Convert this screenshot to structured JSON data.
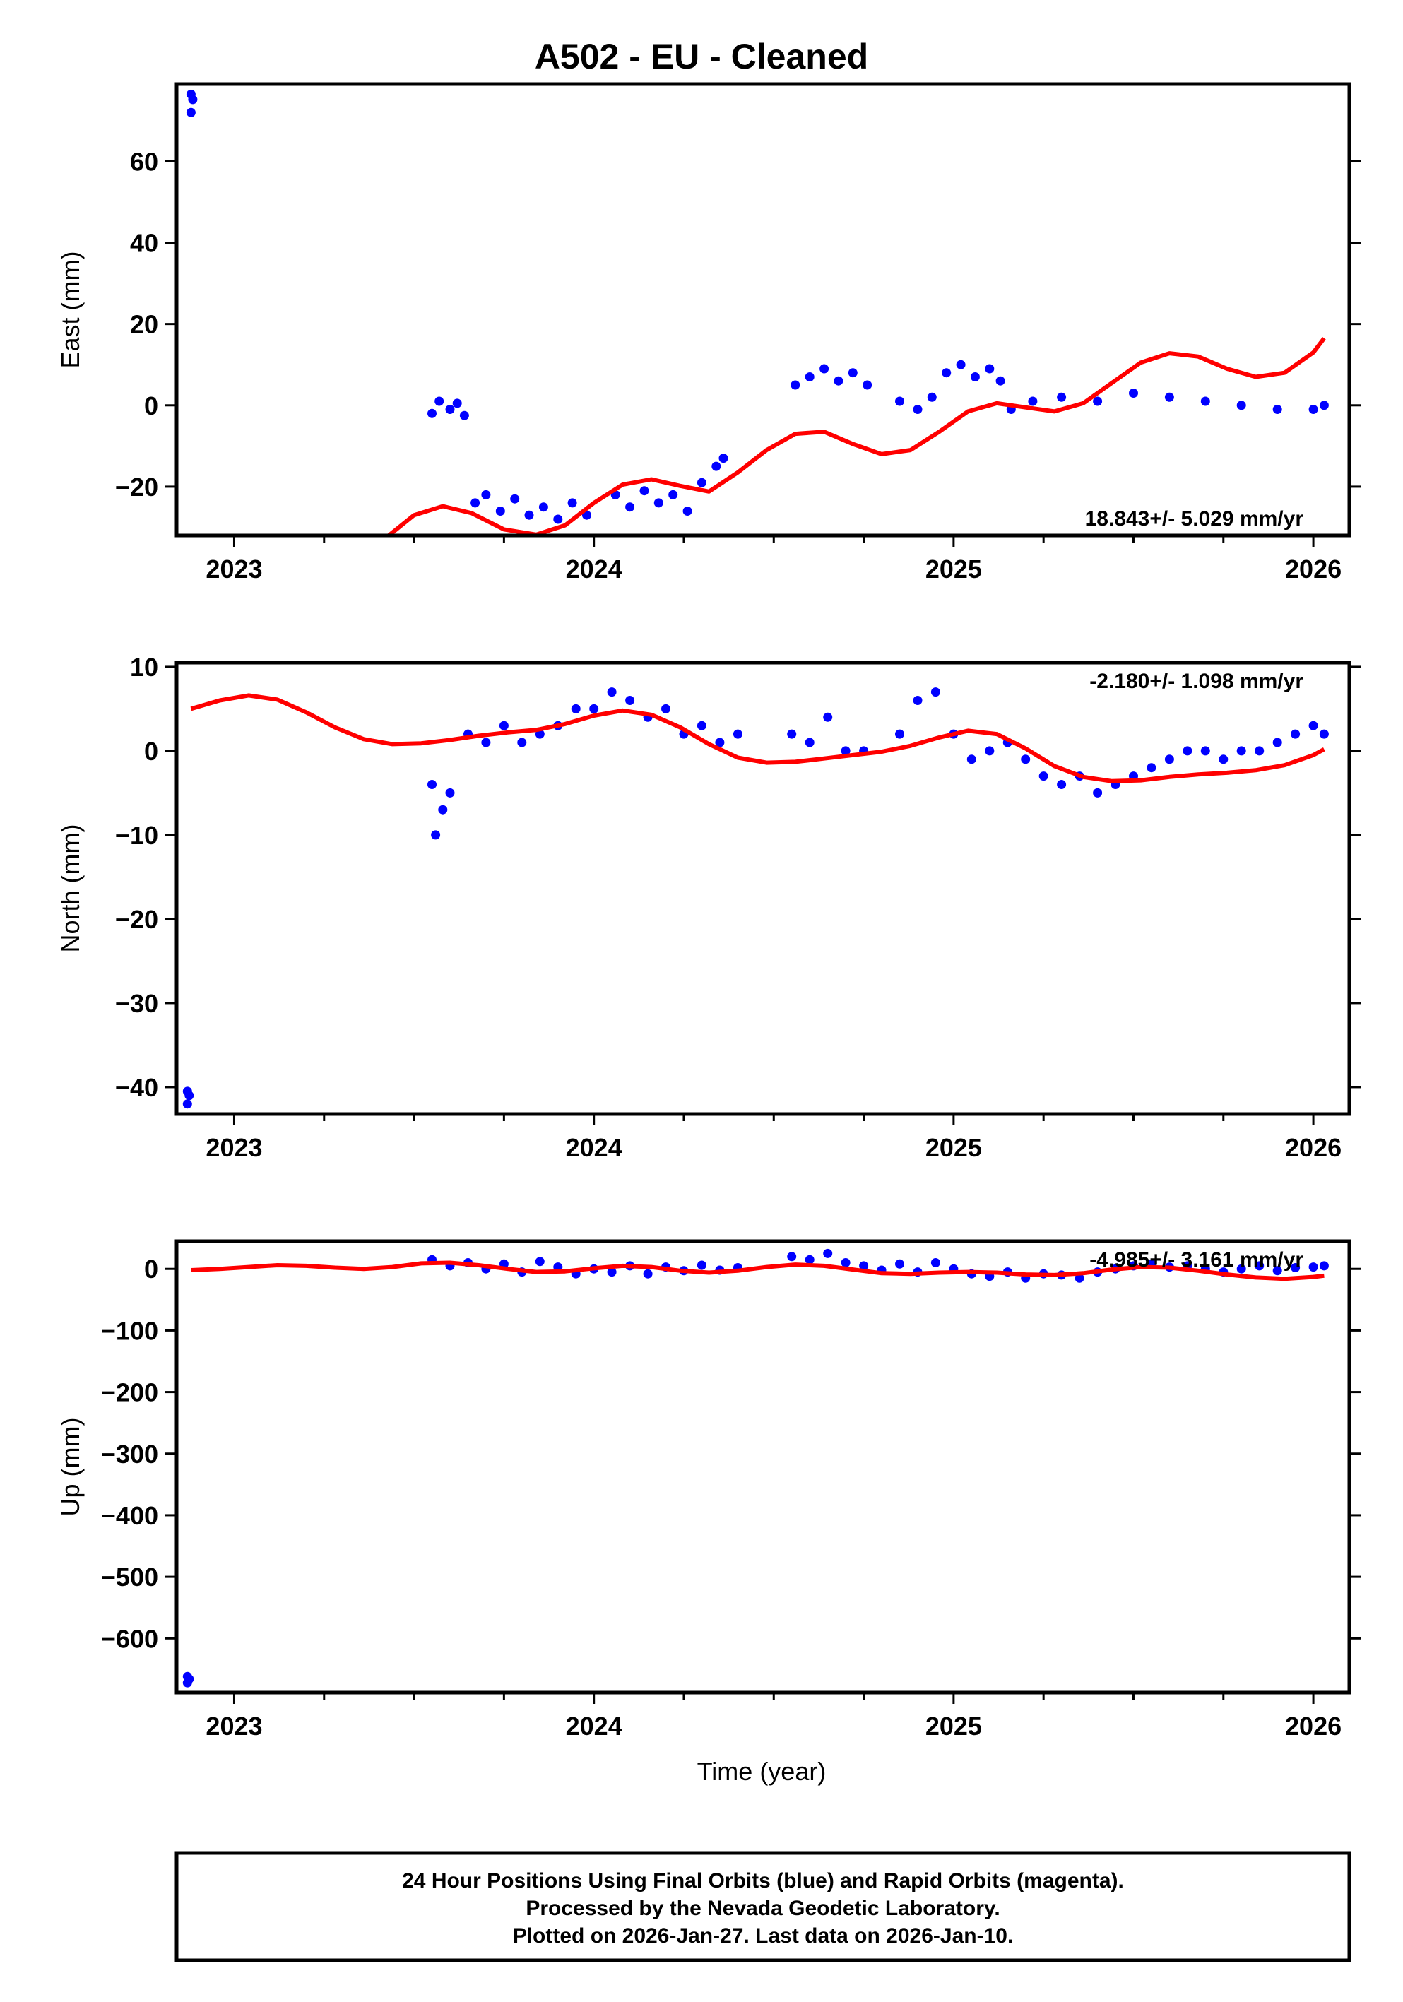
{
  "title": "A502  - EU - Cleaned",
  "colors": {
    "final_orbits": "#0000ff",
    "model": "#ff0000",
    "frame": "#000000"
  },
  "chart_data": [
    {
      "type": "scatter",
      "component": "East",
      "ylabel": "East (mm)",
      "xlabel": "",
      "xlim": [
        2022.84,
        2026.1
      ],
      "ylim": [
        -32,
        79
      ],
      "xticks": [
        2023,
        2024,
        2025,
        2026
      ],
      "xtick_labels": [
        "2023",
        "2024",
        "2025",
        "2026"
      ],
      "yticks": [
        -20,
        0,
        20,
        40,
        60
      ],
      "ytick_labels": [
        "−20",
        "0",
        "20",
        "40",
        "60"
      ],
      "rate_label": "18.843+/- 5.029 mm/yr",
      "points": [
        [
          2022.88,
          76.5
        ],
        [
          2022.885,
          75.2
        ],
        [
          2022.88,
          72.0
        ],
        [
          2023.55,
          -2
        ],
        [
          2023.57,
          1
        ],
        [
          2023.6,
          -1
        ],
        [
          2023.62,
          0.5
        ],
        [
          2023.64,
          -2.5
        ],
        [
          2023.67,
          -24
        ],
        [
          2023.7,
          -22
        ],
        [
          2023.74,
          -26
        ],
        [
          2023.78,
          -23
        ],
        [
          2023.82,
          -27
        ],
        [
          2023.86,
          -25
        ],
        [
          2023.9,
          -28
        ],
        [
          2023.94,
          -24
        ],
        [
          2023.98,
          -27
        ],
        [
          2024.06,
          -22
        ],
        [
          2024.1,
          -25
        ],
        [
          2024.14,
          -21
        ],
        [
          2024.18,
          -24
        ],
        [
          2024.22,
          -22
        ],
        [
          2024.26,
          -26
        ],
        [
          2024.3,
          -19
        ],
        [
          2024.34,
          -15
        ],
        [
          2024.36,
          -13
        ],
        [
          2024.56,
          5
        ],
        [
          2024.6,
          7
        ],
        [
          2024.64,
          9
        ],
        [
          2024.68,
          6
        ],
        [
          2024.72,
          8
        ],
        [
          2024.76,
          5
        ],
        [
          2024.85,
          1
        ],
        [
          2024.9,
          -1
        ],
        [
          2024.94,
          2
        ],
        [
          2024.98,
          8
        ],
        [
          2025.02,
          10
        ],
        [
          2025.06,
          7
        ],
        [
          2025.1,
          9
        ],
        [
          2025.13,
          6
        ],
        [
          2025.16,
          -1
        ],
        [
          2025.22,
          1
        ],
        [
          2025.3,
          2
        ],
        [
          2025.4,
          1
        ],
        [
          2025.5,
          3
        ],
        [
          2025.6,
          2
        ],
        [
          2025.7,
          1
        ],
        [
          2025.8,
          0
        ],
        [
          2025.9,
          -1
        ],
        [
          2026.0,
          -1
        ],
        [
          2026.03,
          0
        ]
      ],
      "model_curve": [
        [
          2023.43,
          -32
        ],
        [
          2023.5,
          -27
        ],
        [
          2023.58,
          -24.8
        ],
        [
          2023.66,
          -26.5
        ],
        [
          2023.75,
          -30.5
        ],
        [
          2023.84,
          -31.8
        ],
        [
          2023.92,
          -29.5
        ],
        [
          2024.0,
          -24
        ],
        [
          2024.08,
          -19.5
        ],
        [
          2024.16,
          -18.2
        ],
        [
          2024.24,
          -19.8
        ],
        [
          2024.32,
          -21.2
        ],
        [
          2024.4,
          -16.5
        ],
        [
          2024.48,
          -11
        ],
        [
          2024.56,
          -7
        ],
        [
          2024.64,
          -6.5
        ],
        [
          2024.72,
          -9.5
        ],
        [
          2024.8,
          -12
        ],
        [
          2024.88,
          -11
        ],
        [
          2024.96,
          -6.5
        ],
        [
          2025.04,
          -1.5
        ],
        [
          2025.12,
          0.5
        ],
        [
          2025.2,
          -0.5
        ],
        [
          2025.28,
          -1.5
        ],
        [
          2025.36,
          0.5
        ],
        [
          2025.44,
          5.5
        ],
        [
          2025.52,
          10.5
        ],
        [
          2025.6,
          12.8
        ],
        [
          2025.68,
          12
        ],
        [
          2025.76,
          9
        ],
        [
          2025.84,
          7
        ],
        [
          2025.92,
          8
        ],
        [
          2026.0,
          13
        ],
        [
          2026.03,
          16.5
        ]
      ]
    },
    {
      "type": "scatter",
      "component": "North",
      "ylabel": "North (mm)",
      "xlabel": "",
      "xlim": [
        2022.84,
        2026.1
      ],
      "ylim": [
        -43.2,
        10.5
      ],
      "xticks": [
        2023,
        2024,
        2025,
        2026
      ],
      "xtick_labels": [
        "2023",
        "2024",
        "2025",
        "2026"
      ],
      "yticks": [
        -40,
        -30,
        -20,
        -10,
        0,
        10
      ],
      "ytick_labels": [
        "−40",
        "−30",
        "−20",
        "−10",
        "0",
        "10"
      ],
      "rate_label": "-2.180+/- 1.098 mm/yr",
      "points": [
        [
          2022.87,
          -40.5
        ],
        [
          2022.875,
          -41.0
        ],
        [
          2022.87,
          -42.0
        ],
        [
          2023.55,
          -4
        ],
        [
          2023.56,
          -10
        ],
        [
          2023.58,
          -7
        ],
        [
          2023.6,
          -5
        ],
        [
          2023.65,
          2
        ],
        [
          2023.7,
          1
        ],
        [
          2023.75,
          3
        ],
        [
          2023.8,
          1
        ],
        [
          2023.85,
          2
        ],
        [
          2023.9,
          3
        ],
        [
          2023.95,
          5
        ],
        [
          2024.0,
          5
        ],
        [
          2024.05,
          7
        ],
        [
          2024.1,
          6
        ],
        [
          2024.15,
          4
        ],
        [
          2024.2,
          5
        ],
        [
          2024.25,
          2
        ],
        [
          2024.3,
          3
        ],
        [
          2024.35,
          1
        ],
        [
          2024.4,
          2
        ],
        [
          2024.55,
          2
        ],
        [
          2024.6,
          1
        ],
        [
          2024.65,
          4
        ],
        [
          2024.7,
          0
        ],
        [
          2024.75,
          0
        ],
        [
          2024.85,
          2
        ],
        [
          2024.9,
          6
        ],
        [
          2024.95,
          7
        ],
        [
          2025.0,
          2
        ],
        [
          2025.05,
          -1
        ],
        [
          2025.1,
          0
        ],
        [
          2025.15,
          1
        ],
        [
          2025.2,
          -1
        ],
        [
          2025.25,
          -3
        ],
        [
          2025.3,
          -4
        ],
        [
          2025.35,
          -3
        ],
        [
          2025.4,
          -5
        ],
        [
          2025.45,
          -4
        ],
        [
          2025.5,
          -3
        ],
        [
          2025.55,
          -2
        ],
        [
          2025.6,
          -1
        ],
        [
          2025.65,
          0
        ],
        [
          2025.7,
          0
        ],
        [
          2025.75,
          -1
        ],
        [
          2025.8,
          0
        ],
        [
          2025.85,
          0
        ],
        [
          2025.9,
          1
        ],
        [
          2025.95,
          2
        ],
        [
          2026.0,
          3
        ],
        [
          2026.03,
          2
        ]
      ],
      "model_curve": [
        [
          2022.88,
          5.0
        ],
        [
          2022.96,
          6.0
        ],
        [
          2023.04,
          6.6
        ],
        [
          2023.12,
          6.1
        ],
        [
          2023.2,
          4.6
        ],
        [
          2023.28,
          2.8
        ],
        [
          2023.36,
          1.4
        ],
        [
          2023.44,
          0.8
        ],
        [
          2023.52,
          0.9
        ],
        [
          2023.6,
          1.3
        ],
        [
          2023.68,
          1.8
        ],
        [
          2023.76,
          2.2
        ],
        [
          2023.84,
          2.5
        ],
        [
          2023.92,
          3.2
        ],
        [
          2024.0,
          4.2
        ],
        [
          2024.08,
          4.8
        ],
        [
          2024.16,
          4.3
        ],
        [
          2024.24,
          2.8
        ],
        [
          2024.32,
          0.8
        ],
        [
          2024.4,
          -0.8
        ],
        [
          2024.48,
          -1.4
        ],
        [
          2024.56,
          -1.3
        ],
        [
          2024.64,
          -0.9
        ],
        [
          2024.72,
          -0.5
        ],
        [
          2024.8,
          -0.1
        ],
        [
          2024.88,
          0.6
        ],
        [
          2024.96,
          1.6
        ],
        [
          2025.04,
          2.4
        ],
        [
          2025.12,
          2.0
        ],
        [
          2025.2,
          0.3
        ],
        [
          2025.28,
          -1.8
        ],
        [
          2025.36,
          -3.1
        ],
        [
          2025.44,
          -3.6
        ],
        [
          2025.52,
          -3.5
        ],
        [
          2025.6,
          -3.1
        ],
        [
          2025.68,
          -2.8
        ],
        [
          2025.76,
          -2.6
        ],
        [
          2025.84,
          -2.3
        ],
        [
          2025.92,
          -1.7
        ],
        [
          2026.0,
          -0.5
        ],
        [
          2026.03,
          0.2
        ]
      ]
    },
    {
      "type": "scatter",
      "component": "Up",
      "ylabel": "Up (mm)",
      "xlabel": "Time (year)",
      "xlim": [
        2022.84,
        2026.1
      ],
      "ylim": [
        -688,
        45
      ],
      "xticks": [
        2023,
        2024,
        2025,
        2026
      ],
      "xtick_labels": [
        "2023",
        "2024",
        "2025",
        "2026"
      ],
      "yticks": [
        -600,
        -500,
        -400,
        -300,
        -200,
        -100,
        0
      ],
      "ytick_labels": [
        "−600",
        "−500",
        "−400",
        "−300",
        "−200",
        "−100",
        "0"
      ],
      "rate_label": "-4.985+/- 3.161 mm/yr",
      "points": [
        [
          2022.87,
          -662
        ],
        [
          2022.875,
          -666
        ],
        [
          2022.87,
          -672
        ],
        [
          2023.55,
          15
        ],
        [
          2023.6,
          5
        ],
        [
          2023.65,
          10
        ],
        [
          2023.7,
          0
        ],
        [
          2023.75,
          8
        ],
        [
          2023.8,
          -5
        ],
        [
          2023.85,
          12
        ],
        [
          2023.9,
          3
        ],
        [
          2023.95,
          -8
        ],
        [
          2024.0,
          0
        ],
        [
          2024.05,
          -5
        ],
        [
          2024.1,
          5
        ],
        [
          2024.15,
          -8
        ],
        [
          2024.2,
          3
        ],
        [
          2024.25,
          -3
        ],
        [
          2024.3,
          6
        ],
        [
          2024.35,
          -2
        ],
        [
          2024.4,
          2
        ],
        [
          2024.55,
          20
        ],
        [
          2024.6,
          15
        ],
        [
          2024.65,
          25
        ],
        [
          2024.7,
          10
        ],
        [
          2024.75,
          5
        ],
        [
          2024.8,
          -2
        ],
        [
          2024.85,
          8
        ],
        [
          2024.9,
          -5
        ],
        [
          2024.95,
          10
        ],
        [
          2025.0,
          0
        ],
        [
          2025.05,
          -8
        ],
        [
          2025.1,
          -12
        ],
        [
          2025.15,
          -5
        ],
        [
          2025.2,
          -15
        ],
        [
          2025.25,
          -8
        ],
        [
          2025.3,
          -10
        ],
        [
          2025.35,
          -15
        ],
        [
          2025.4,
          -5
        ],
        [
          2025.45,
          0
        ],
        [
          2025.5,
          5
        ],
        [
          2025.55,
          8
        ],
        [
          2025.6,
          3
        ],
        [
          2025.65,
          5
        ],
        [
          2025.7,
          0
        ],
        [
          2025.75,
          -5
        ],
        [
          2025.8,
          0
        ],
        [
          2025.85,
          5
        ],
        [
          2025.9,
          -3
        ],
        [
          2025.95,
          2
        ],
        [
          2026.0,
          3
        ],
        [
          2026.03,
          5
        ]
      ],
      "model_curve": [
        [
          2022.88,
          -2
        ],
        [
          2022.96,
          0
        ],
        [
          2023.04,
          3
        ],
        [
          2023.12,
          6
        ],
        [
          2023.2,
          5
        ],
        [
          2023.28,
          2
        ],
        [
          2023.36,
          0
        ],
        [
          2023.44,
          3
        ],
        [
          2023.52,
          9
        ],
        [
          2023.6,
          10
        ],
        [
          2023.68,
          6
        ],
        [
          2023.76,
          0
        ],
        [
          2023.84,
          -5
        ],
        [
          2023.92,
          -4
        ],
        [
          2024.0,
          1
        ],
        [
          2024.08,
          5
        ],
        [
          2024.16,
          3
        ],
        [
          2024.24,
          -3
        ],
        [
          2024.32,
          -6
        ],
        [
          2024.4,
          -3
        ],
        [
          2024.48,
          3
        ],
        [
          2024.56,
          7
        ],
        [
          2024.64,
          5
        ],
        [
          2024.72,
          -1
        ],
        [
          2024.8,
          -7
        ],
        [
          2024.88,
          -8
        ],
        [
          2024.96,
          -6
        ],
        [
          2025.04,
          -5
        ],
        [
          2025.12,
          -6
        ],
        [
          2025.2,
          -9
        ],
        [
          2025.28,
          -10
        ],
        [
          2025.36,
          -7
        ],
        [
          2025.44,
          -1
        ],
        [
          2025.52,
          3
        ],
        [
          2025.6,
          2
        ],
        [
          2025.68,
          -3
        ],
        [
          2025.76,
          -9
        ],
        [
          2025.84,
          -14
        ],
        [
          2025.92,
          -16
        ],
        [
          2026.0,
          -13
        ],
        [
          2026.03,
          -11
        ]
      ]
    }
  ],
  "footer": {
    "line1": "24 Hour Positions Using Final Orbits (blue) and Rapid Orbits (magenta).",
    "line2": "Processed by the Nevada Geodetic Laboratory.",
    "line3": "Plotted on 2026-Jan-27. Last data on 2026-Jan-10."
  }
}
